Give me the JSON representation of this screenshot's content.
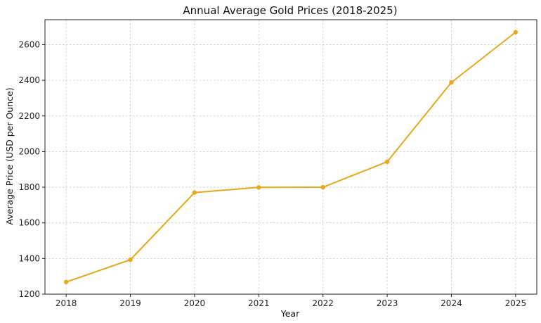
{
  "chart_data": {
    "type": "line",
    "title": "Annual Average Gold Prices (2018-2025)",
    "xlabel": "Year",
    "ylabel": "Average Price (USD per Ounce)",
    "x": [
      2018,
      2019,
      2020,
      2021,
      2022,
      2023,
      2024,
      2025
    ],
    "x_tick_labels": [
      "2018",
      "2019",
      "2020",
      "2021",
      "2022",
      "2023",
      "2024",
      "2025"
    ],
    "series": [
      {
        "values": [
          1268,
          1393,
          1770,
          1799,
          1800,
          1943,
          2388,
          2670
        ]
      }
    ],
    "ylim": [
      1200,
      2740
    ],
    "xlim": [
      2017.67,
      2025.33
    ],
    "y_ticks": [
      1200,
      1400,
      1600,
      1800,
      2000,
      2200,
      2400,
      2600
    ],
    "y_tick_labels": [
      "1200",
      "1400",
      "1600",
      "1800",
      "2000",
      "2200",
      "2400",
      "2600"
    ],
    "grid": true,
    "line_color": "#E8A817"
  }
}
